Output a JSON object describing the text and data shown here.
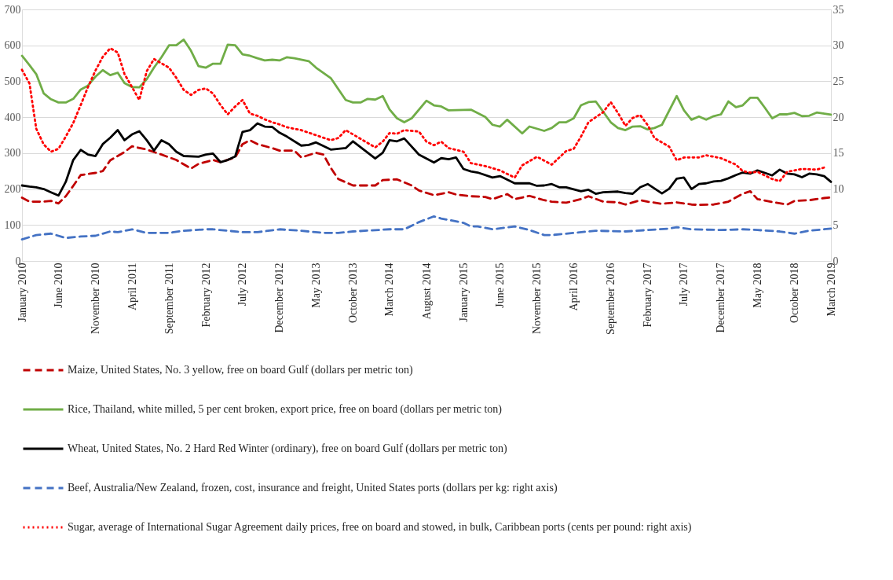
{
  "chart_data": {
    "type": "line",
    "legend": "bottom",
    "grid": "y",
    "marker": "none",
    "xlim": [
      "2010-01",
      "2019-03"
    ],
    "xticks": [
      {
        "value": "2010-01",
        "label": "January 2010"
      },
      {
        "value": "2010-06",
        "label": "June 2010"
      },
      {
        "value": "2010-11",
        "label": "November 2010"
      },
      {
        "value": "2011-04",
        "label": "April 2011"
      },
      {
        "value": "2011-09",
        "label": "September 2011"
      },
      {
        "value": "2012-02",
        "label": "February 2012"
      },
      {
        "value": "2012-07",
        "label": "July 2012"
      },
      {
        "value": "2012-12",
        "label": "December 2012"
      },
      {
        "value": "2013-05",
        "label": "May 2013"
      },
      {
        "value": "2013-10",
        "label": "October 2013"
      },
      {
        "value": "2014-03",
        "label": "March 2014"
      },
      {
        "value": "2014-08",
        "label": "August 2014"
      },
      {
        "value": "2015-01",
        "label": "January 2015"
      },
      {
        "value": "2015-06",
        "label": "June 2015"
      },
      {
        "value": "2015-11",
        "label": "November 2015"
      },
      {
        "value": "2016-04",
        "label": "April 2016"
      },
      {
        "value": "2016-09",
        "label": "September 2016"
      },
      {
        "value": "2017-02",
        "label": "February 2017"
      },
      {
        "value": "2017-07",
        "label": "July 2017"
      },
      {
        "value": "2017-12",
        "label": "December 2017"
      },
      {
        "value": "2018-05",
        "label": "May 2018"
      },
      {
        "value": "2018-10",
        "label": "October 2018"
      },
      {
        "value": "2019-03",
        "label": "March 2019"
      }
    ],
    "ylim": [
      0,
      700
    ],
    "yticks": [
      0,
      100,
      200,
      300,
      400,
      500,
      600,
      700
    ],
    "y2lim": [
      0,
      35
    ],
    "y2ticks": [
      0,
      5,
      10,
      15,
      20,
      25,
      30,
      35
    ],
    "series": [
      {
        "name": "Maize, United States, No. 3 yellow, free on board Gulf (dollars per metric ton)",
        "color": "#c00000",
        "line_style": "dashed",
        "x": [
          "2010-01",
          "2010-02",
          "2010-04",
          "2010-05",
          "2010-06",
          "2010-07",
          "2010-08",
          "2010-09",
          "2010-11",
          "2010-12",
          "2011-01",
          "2011-03",
          "2011-04",
          "2011-06",
          "2011-07",
          "2011-08",
          "2011-10",
          "2011-12",
          "2012-01",
          "2012-03",
          "2012-04",
          "2012-06",
          "2012-07",
          "2012-08",
          "2012-09",
          "2012-11",
          "2012-12",
          "2013-02",
          "2013-03",
          "2013-05",
          "2013-06",
          "2013-07",
          "2013-08",
          "2013-10",
          "2013-11",
          "2014-01",
          "2014-02",
          "2014-04",
          "2014-06",
          "2014-07",
          "2014-09",
          "2014-11",
          "2014-12",
          "2015-02",
          "2015-04",
          "2015-05",
          "2015-07",
          "2015-08",
          "2015-10",
          "2015-12",
          "2016-01",
          "2016-03",
          "2016-05",
          "2016-06",
          "2016-08",
          "2016-10",
          "2016-11",
          "2017-01",
          "2017-02",
          "2017-04",
          "2017-06",
          "2017-08",
          "2017-09",
          "2017-11",
          "2018-01",
          "2018-03",
          "2018-04",
          "2018-05",
          "2018-07",
          "2018-09",
          "2018-10",
          "2018-12",
          "2019-02",
          "2019-03"
        ],
        "values": [
          176,
          165,
          165,
          167,
          160,
          180,
          209,
          239,
          245,
          250,
          280,
          303,
          319,
          310,
          303,
          296,
          281,
          257,
          270,
          281,
          275,
          288,
          325,
          336,
          325,
          314,
          307,
          307,
          288,
          301,
          296,
          259,
          228,
          210,
          210,
          210,
          225,
          227,
          210,
          196,
          183,
          191,
          185,
          180,
          178,
          172,
          186,
          172,
          181,
          169,
          165,
          162,
          172,
          180,
          165,
          163,
          157,
          169,
          165,
          159,
          163,
          157,
          156,
          157,
          165,
          187,
          194,
          172,
          164,
          157,
          167,
          169,
          175,
          177
        ]
      },
      {
        "name": "Rice, Thailand, white milled, 5 per cent broken, export price, free on board (dollars per metric ton)",
        "color": "#70ad47",
        "line_style": "solid",
        "x": [
          "2010-01",
          "2010-02",
          "2010-03",
          "2010-04",
          "2010-05",
          "2010-06",
          "2010-07",
          "2010-08",
          "2010-09",
          "2010-10",
          "2010-11",
          "2010-12",
          "2011-01",
          "2011-02",
          "2011-03",
          "2011-04",
          "2011-05",
          "2011-06",
          "2011-07",
          "2011-08",
          "2011-09",
          "2011-10",
          "2011-11",
          "2011-12",
          "2012-01",
          "2012-02",
          "2012-03",
          "2012-04",
          "2012-05",
          "2012-06",
          "2012-07",
          "2012-08",
          "2012-09",
          "2012-10",
          "2012-11",
          "2012-12",
          "2013-01",
          "2013-02",
          "2013-04",
          "2013-05",
          "2013-07",
          "2013-09",
          "2013-10",
          "2013-11",
          "2013-12",
          "2014-01",
          "2014-02",
          "2014-03",
          "2014-04",
          "2014-05",
          "2014-06",
          "2014-08",
          "2014-09",
          "2014-10",
          "2014-11",
          "2015-02",
          "2015-04",
          "2015-05",
          "2015-06",
          "2015-07",
          "2015-09",
          "2015-10",
          "2015-12",
          "2016-01",
          "2016-02",
          "2016-03",
          "2016-04",
          "2016-05",
          "2016-06",
          "2016-07",
          "2016-09",
          "2016-10",
          "2016-11",
          "2016-12",
          "2017-01",
          "2017-02",
          "2017-03",
          "2017-04",
          "2017-06",
          "2017-07",
          "2017-08",
          "2017-09",
          "2017-10",
          "2017-11",
          "2017-12",
          "2018-01",
          "2018-02",
          "2018-03",
          "2018-04",
          "2018-05",
          "2018-06",
          "2018-07",
          "2018-08",
          "2018-09",
          "2018-10",
          "2018-11",
          "2018-12",
          "2019-01",
          "2019-03"
        ],
        "values": [
          571,
          545,
          520,
          466,
          450,
          441,
          441,
          451,
          477,
          488,
          513,
          531,
          517,
          524,
          495,
          484,
          483,
          506,
          538,
          567,
          600,
          600,
          616,
          585,
          542,
          538,
          549,
          549,
          602,
          600,
          575,
          571,
          564,
          558,
          560,
          558,
          567,
          564,
          556,
          538,
          509,
          448,
          441,
          441,
          451,
          449,
          459,
          422,
          397,
          386,
          397,
          446,
          433,
          430,
          419,
          421,
          401,
          379,
          374,
          393,
          355,
          374,
          362,
          370,
          386,
          386,
          397,
          433,
          442,
          444,
          386,
          370,
          364,
          374,
          375,
          366,
          370,
          379,
          459,
          419,
          393,
          402,
          393,
          403,
          408,
          444,
          428,
          433,
          454,
          454,
          426,
          397,
          408,
          408,
          412,
          403,
          404,
          413,
          407
        ]
      },
      {
        "name": "Wheat, United States, No. 2 Hard Red Winter (ordinary), free on board Gulf (dollars per metric ton)",
        "color": "#000000",
        "line_style": "solid",
        "x": [
          "2010-01",
          "2010-02",
          "2010-03",
          "2010-04",
          "2010-05",
          "2010-06",
          "2010-07",
          "2010-08",
          "2010-09",
          "2010-10",
          "2010-11",
          "2010-12",
          "2011-01",
          "2011-02",
          "2011-03",
          "2011-04",
          "2011-05",
          "2011-06",
          "2011-07",
          "2011-08",
          "2011-09",
          "2011-10",
          "2011-11",
          "2012-01",
          "2012-02",
          "2012-03",
          "2012-04",
          "2012-05",
          "2012-06",
          "2012-07",
          "2012-08",
          "2012-09",
          "2012-10",
          "2012-11",
          "2012-12",
          "2013-01",
          "2013-03",
          "2013-04",
          "2013-05",
          "2013-07",
          "2013-09",
          "2013-10",
          "2014-01",
          "2014-02",
          "2014-03",
          "2014-04",
          "2014-05",
          "2014-07",
          "2014-09",
          "2014-10",
          "2014-11",
          "2014-12",
          "2015-01",
          "2015-02",
          "2015-03",
          "2015-05",
          "2015-06",
          "2015-08",
          "2015-10",
          "2015-11",
          "2015-12",
          "2016-01",
          "2016-02",
          "2016-03",
          "2016-05",
          "2016-06",
          "2016-07",
          "2016-08",
          "2016-10",
          "2016-11",
          "2016-12",
          "2017-01",
          "2017-02",
          "2017-04",
          "2017-05",
          "2017-06",
          "2017-07",
          "2017-08",
          "2017-09",
          "2017-10",
          "2017-11",
          "2017-12",
          "2018-01",
          "2018-02",
          "2018-03",
          "2018-04",
          "2018-05",
          "2018-06",
          "2018-07",
          "2018-08",
          "2018-09",
          "2018-10",
          "2018-11",
          "2018-12",
          "2019-01",
          "2019-02",
          "2019-03"
        ],
        "values": [
          210,
          207,
          205,
          200,
          191,
          182,
          220,
          281,
          309,
          296,
          292,
          325,
          343,
          364,
          336,
          352,
          361,
          336,
          307,
          336,
          325,
          304,
          292,
          290,
          296,
          299,
          275,
          281,
          291,
          359,
          364,
          383,
          374,
          373,
          357,
          346,
          321,
          323,
          330,
          310,
          314,
          333,
          285,
          301,
          336,
          333,
          341,
          296,
          274,
          286,
          283,
          288,
          256,
          249,
          246,
          232,
          236,
          216,
          216,
          209,
          210,
          214,
          205,
          205,
          194,
          198,
          187,
          191,
          193,
          189,
          187,
          205,
          214,
          188,
          201,
          229,
          232,
          200,
          214,
          216,
          221,
          223,
          230,
          239,
          246,
          243,
          252,
          245,
          238,
          254,
          243,
          241,
          233,
          243,
          241,
          236,
          220
        ]
      },
      {
        "name": "Beef, Australia/New Zealand, frozen, cost, insurance and freight, United States ports (dollars per kg: right axis)",
        "color": "#4472c4",
        "line_style": "dashed",
        "axis": "y2",
        "x": [
          "2010-01",
          "2010-03",
          "2010-05",
          "2010-07",
          "2010-09",
          "2010-11",
          "2011-01",
          "2011-02",
          "2011-04",
          "2011-06",
          "2011-09",
          "2011-11",
          "2012-02",
          "2012-03",
          "2012-07",
          "2012-09",
          "2012-12",
          "2013-03",
          "2013-06",
          "2013-08",
          "2013-10",
          "2014-03",
          "2014-05",
          "2014-07",
          "2014-09",
          "2014-10",
          "2015-01",
          "2015-02",
          "2015-03",
          "2015-05",
          "2015-08",
          "2015-10",
          "2015-12",
          "2016-01",
          "2016-04",
          "2016-07",
          "2016-11",
          "2017-02",
          "2017-05",
          "2017-06",
          "2017-08",
          "2017-12",
          "2018-03",
          "2018-05",
          "2018-08",
          "2018-10",
          "2018-12",
          "2019-03"
        ],
        "values": [
          3.0,
          3.6,
          3.8,
          3.2,
          3.4,
          3.5,
          4.1,
          4.0,
          4.4,
          3.9,
          3.9,
          4.2,
          4.4,
          4.4,
          4.0,
          4.0,
          4.4,
          4.2,
          3.9,
          3.9,
          4.1,
          4.4,
          4.4,
          5.4,
          6.2,
          5.9,
          5.3,
          4.8,
          4.8,
          4.4,
          4.8,
          4.3,
          3.6,
          3.6,
          3.9,
          4.2,
          4.1,
          4.3,
          4.5,
          4.7,
          4.4,
          4.3,
          4.4,
          4.3,
          4.1,
          3.8,
          4.2,
          4.5
        ]
      },
      {
        "name": "Sugar, average of International Sugar Agreement daily prices, free on board and stowed, in bulk, Caribbean ports (cents per pound: right axis)",
        "color": "#ff0000",
        "line_style": "dotted",
        "axis": "y2",
        "x": [
          "2010-01",
          "2010-02",
          "2010-03",
          "2010-04",
          "2010-05",
          "2010-06",
          "2010-07",
          "2010-08",
          "2010-09",
          "2010-10",
          "2010-11",
          "2010-12",
          "2011-01",
          "2011-02",
          "2011-03",
          "2011-04",
          "2011-05",
          "2011-06",
          "2011-07",
          "2011-09",
          "2011-10",
          "2011-11",
          "2011-12",
          "2012-01",
          "2012-02",
          "2012-03",
          "2012-04",
          "2012-05",
          "2012-06",
          "2012-07",
          "2012-08",
          "2012-09",
          "2012-10",
          "2012-11",
          "2012-12",
          "2013-01",
          "2013-03",
          "2013-05",
          "2013-07",
          "2013-08",
          "2013-09",
          "2013-11",
          "2014-01",
          "2014-02",
          "2014-03",
          "2014-04",
          "2014-05",
          "2014-07",
          "2014-08",
          "2014-09",
          "2014-10",
          "2014-11",
          "2015-01",
          "2015-02",
          "2015-04",
          "2015-06",
          "2015-08",
          "2015-09",
          "2015-11",
          "2016-01",
          "2016-03",
          "2016-04",
          "2016-05",
          "2016-06",
          "2016-07",
          "2016-08",
          "2016-09",
          "2016-10",
          "2016-11",
          "2016-12",
          "2017-01",
          "2017-02",
          "2017-03",
          "2017-05",
          "2017-06",
          "2017-07",
          "2017-09",
          "2017-10",
          "2017-12",
          "2018-02",
          "2018-03",
          "2018-04",
          "2018-05",
          "2018-07",
          "2018-08",
          "2018-09",
          "2018-11",
          "2019-01",
          "2019-02"
        ],
        "values": [
          26.6,
          24.7,
          18.4,
          16.2,
          15.2,
          15.6,
          17.3,
          19.2,
          21.7,
          24.2,
          26.5,
          28.4,
          29.6,
          29.0,
          26.0,
          24.2,
          22.4,
          26.4,
          28.1,
          26.9,
          25.5,
          23.8,
          23.1,
          23.8,
          24.0,
          23.3,
          21.7,
          20.4,
          21.5,
          22.4,
          20.5,
          20.2,
          19.7,
          19.3,
          19.0,
          18.6,
          18.2,
          17.5,
          16.8,
          17.1,
          18.2,
          17.0,
          15.8,
          16.6,
          17.8,
          17.7,
          18.2,
          18.0,
          16.6,
          16.1,
          16.6,
          15.7,
          15.2,
          13.6,
          13.2,
          12.6,
          11.6,
          13.3,
          14.5,
          13.4,
          15.3,
          15.6,
          17.3,
          19.3,
          20.0,
          20.7,
          22.1,
          20.6,
          18.8,
          19.9,
          20.3,
          18.9,
          17.1,
          15.9,
          14.0,
          14.4,
          14.4,
          14.7,
          14.3,
          13.4,
          12.5,
          12.3,
          12.4,
          11.4,
          11.1,
          12.4,
          12.8,
          12.7,
          13.0
        ]
      }
    ]
  }
}
